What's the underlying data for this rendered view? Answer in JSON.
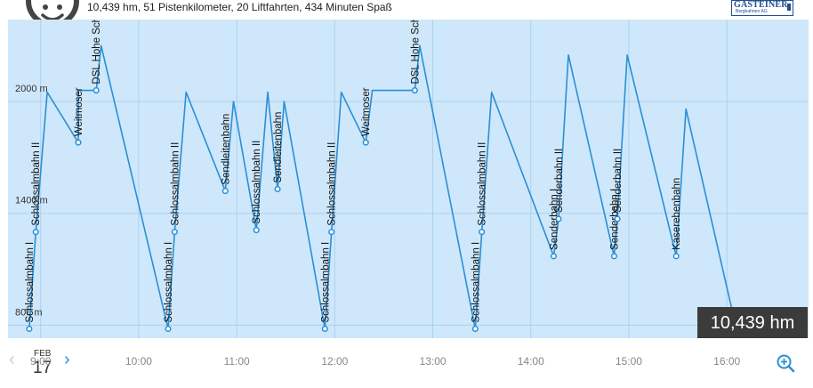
{
  "header": {
    "summary": "10,439 hm, 51 Pistenkilometer, 20 Liftfahrten, 434 Minuten Spaß",
    "logo_line1": "GASTEINER",
    "logo_line2": "Bergbahnen AG"
  },
  "colors": {
    "line": "#2a8fd6",
    "plot_bg": "#cfe7fa",
    "grid": "#a9d2f3",
    "badge_bg": "#3b3b3b"
  },
  "icons": {
    "smiley": "smiley-face-icon",
    "prev": "chevron-left-icon",
    "next": "chevron-right-icon",
    "zoom": "zoom-in-icon"
  },
  "nav": {
    "month": "FEB",
    "day": "17",
    "prev": "‹",
    "next": "›"
  },
  "badge": {
    "text": "10,439 hm"
  },
  "chart_data": {
    "type": "line",
    "xlabel": "",
    "ylabel": "",
    "xlim": [
      "8:40",
      "16:50"
    ],
    "ylim": [
      730,
      2440
    ],
    "y_ticks": [
      800,
      1400,
      2000
    ],
    "y_tick_labels": [
      "800 m",
      "1400 m",
      "2000 m"
    ],
    "x_ticks": [
      "9:00",
      "10:00",
      "11:00",
      "12:00",
      "13:00",
      "14:00",
      "15:00",
      "16:00"
    ],
    "grid": true,
    "series": [
      {
        "points": [
          [
            "8:53",
            780
          ],
          [
            "8:57",
            1300
          ],
          [
            "9:04",
            2050
          ],
          [
            "9:23",
            1780
          ],
          [
            "9:23",
            2060
          ],
          [
            "9:34",
            2060
          ],
          [
            "9:37",
            2300
          ],
          [
            "10:18",
            780
          ],
          [
            "10:22",
            1300
          ],
          [
            "10:29",
            2050
          ],
          [
            "10:53",
            1520
          ],
          [
            "10:58",
            2000
          ],
          [
            "11:12",
            1310
          ],
          [
            "11:19",
            2050
          ],
          [
            "11:25",
            1530
          ],
          [
            "11:29",
            2000
          ],
          [
            "11:54",
            780
          ],
          [
            "11:58",
            1300
          ],
          [
            "12:04",
            2050
          ],
          [
            "12:19",
            1780
          ],
          [
            "12:23",
            2060
          ],
          [
            "12:49",
            2060
          ],
          [
            "12:52",
            2300
          ],
          [
            "13:26",
            780
          ],
          [
            "13:30",
            1300
          ],
          [
            "13:36",
            2050
          ],
          [
            "14:14",
            1170
          ],
          [
            "14:17",
            1370
          ],
          [
            "14:23",
            2250
          ],
          [
            "14:51",
            1170
          ],
          [
            "14:53",
            1370
          ],
          [
            "14:59",
            2250
          ],
          [
            "15:29",
            1170
          ],
          [
            "15:35",
            1960
          ],
          [
            "16:04",
            850
          ]
        ]
      }
    ],
    "markers": [
      {
        "x": "8:53",
        "y": 780,
        "label": "Schlossalmbahn I"
      },
      {
        "x": "8:57",
        "y": 1300,
        "label": "Schlossalmbahn II"
      },
      {
        "x": "9:23",
        "y": 1780,
        "label": "Weitmoser"
      },
      {
        "x": "9:34",
        "y": 2060,
        "label": "DSL Hohe Scharte"
      },
      {
        "x": "10:18",
        "y": 780,
        "label": "Schlossalmbahn I"
      },
      {
        "x": "10:22",
        "y": 1300,
        "label": "Schlossalmbahn II"
      },
      {
        "x": "10:53",
        "y": 1520,
        "label": "Sendleitenbahn"
      },
      {
        "x": "11:12",
        "y": 1310,
        "label": "Schlossalmbahn II"
      },
      {
        "x": "11:25",
        "y": 1530,
        "label": "Sendleitenbahn"
      },
      {
        "x": "11:54",
        "y": 780,
        "label": "Schlossalmbahn I"
      },
      {
        "x": "11:58",
        "y": 1300,
        "label": "Schlossalmbahn II"
      },
      {
        "x": "12:19",
        "y": 1780,
        "label": "Weitmoser"
      },
      {
        "x": "12:49",
        "y": 2060,
        "label": "DSL Hohe Scharte"
      },
      {
        "x": "13:26",
        "y": 780,
        "label": "Schlossalmbahn I"
      },
      {
        "x": "13:30",
        "y": 1300,
        "label": "Schlossalmbahn II"
      },
      {
        "x": "14:14",
        "y": 1170,
        "label": "Senderbahn I"
      },
      {
        "x": "14:17",
        "y": 1370,
        "label": "Senderbahn II"
      },
      {
        "x": "14:51",
        "y": 1170,
        "label": "Senderbahn I"
      },
      {
        "x": "14:53",
        "y": 1370,
        "label": "Senderbahn II"
      },
      {
        "x": "15:29",
        "y": 1170,
        "label": "Kaserebenbahn"
      }
    ]
  }
}
